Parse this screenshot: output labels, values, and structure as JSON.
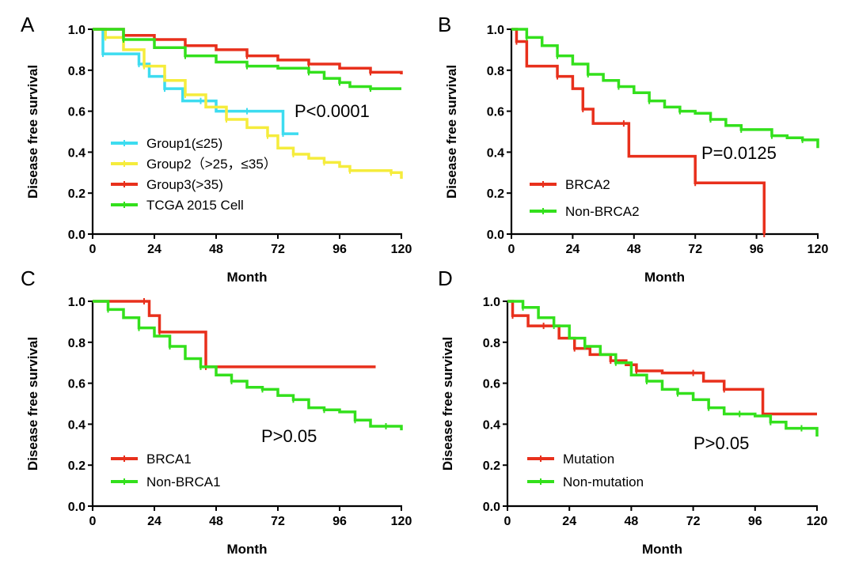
{
  "chart_data": [
    {
      "type": "line",
      "panel": "A",
      "xlabel": "Month",
      "ylabel": "Disease free survival",
      "xlim": [
        0,
        120
      ],
      "ylim": [
        0,
        1.0
      ],
      "x_ticks": [
        "0",
        "24",
        "48",
        "72",
        "96",
        "120"
      ],
      "y_ticks": [
        "0.0",
        "0.2",
        "0.4",
        "0.6",
        "0.8",
        "1.0"
      ],
      "annotation": "P<0.0001",
      "grid": false,
      "legend_position": "bottom-left",
      "series": [
        {
          "name": "Group1(≤25)",
          "color": "#3ddcf0",
          "x": [
            0,
            4,
            8,
            18,
            22,
            28,
            35,
            42,
            48,
            60,
            72,
            74,
            80
          ],
          "y": [
            1.0,
            0.88,
            0.88,
            0.83,
            0.77,
            0.71,
            0.65,
            0.65,
            0.6,
            0.6,
            0.6,
            0.49,
            0.49
          ]
        },
        {
          "name": "Group2（>25，≤35）",
          "color": "#f5ec3c",
          "x": [
            0,
            5,
            12,
            20,
            28,
            36,
            44,
            52,
            60,
            68,
            72,
            78,
            84,
            90,
            96,
            100,
            108,
            116,
            120
          ],
          "y": [
            1.0,
            0.96,
            0.9,
            0.82,
            0.75,
            0.68,
            0.62,
            0.56,
            0.52,
            0.48,
            0.42,
            0.39,
            0.37,
            0.35,
            0.33,
            0.31,
            0.31,
            0.3,
            0.27
          ]
        },
        {
          "name": "Group3(>35)",
          "color": "#e8301c",
          "x": [
            0,
            12,
            24,
            36,
            48,
            60,
            72,
            84,
            96,
            108,
            120
          ],
          "y": [
            1.0,
            0.97,
            0.95,
            0.92,
            0.9,
            0.87,
            0.85,
            0.83,
            0.81,
            0.79,
            0.78
          ]
        },
        {
          "name": "TCGA 2015 Cell",
          "color": "#33e01c",
          "x": [
            0,
            12,
            24,
            36,
            48,
            60,
            72,
            84,
            90,
            96,
            100,
            108,
            120
          ],
          "y": [
            1.0,
            0.95,
            0.91,
            0.87,
            0.84,
            0.82,
            0.81,
            0.79,
            0.76,
            0.74,
            0.72,
            0.71,
            0.71
          ]
        }
      ]
    },
    {
      "type": "line",
      "panel": "B",
      "xlabel": "Month",
      "ylabel": "Disease free survival",
      "xlim": [
        0,
        120
      ],
      "ylim": [
        0,
        1.0
      ],
      "x_ticks": [
        "0",
        "24",
        "48",
        "72",
        "96",
        "120"
      ],
      "y_ticks": [
        "0.0",
        "0.2",
        "0.4",
        "0.6",
        "0.8",
        "1.0"
      ],
      "annotation": "P=0.0125",
      "grid": false,
      "legend_position": "bottom-left",
      "series": [
        {
          "name": "BRCA2",
          "color": "#e8301c",
          "x": [
            0,
            2,
            6,
            18,
            24,
            28,
            32,
            44,
            46,
            72,
            97,
            99
          ],
          "y": [
            1.0,
            0.94,
            0.82,
            0.77,
            0.71,
            0.61,
            0.54,
            0.54,
            0.38,
            0.25,
            0.25,
            0.0
          ]
        },
        {
          "name": "Non-BRCA2",
          "color": "#33e01c",
          "x": [
            0,
            6,
            12,
            18,
            24,
            30,
            36,
            42,
            48,
            54,
            60,
            66,
            72,
            78,
            84,
            90,
            96,
            102,
            108,
            114,
            120
          ],
          "y": [
            1.0,
            0.96,
            0.92,
            0.87,
            0.83,
            0.78,
            0.75,
            0.72,
            0.69,
            0.65,
            0.62,
            0.6,
            0.59,
            0.56,
            0.53,
            0.51,
            0.51,
            0.48,
            0.47,
            0.46,
            0.42
          ]
        }
      ]
    },
    {
      "type": "line",
      "panel": "C",
      "xlabel": "Month",
      "ylabel": "Disease free survival",
      "xlim": [
        0,
        120
      ],
      "ylim": [
        0,
        1.0
      ],
      "x_ticks": [
        "0",
        "24",
        "48",
        "72",
        "96",
        "120"
      ],
      "y_ticks": [
        "0.0",
        "0.2",
        "0.4",
        "0.6",
        "0.8",
        "1.0"
      ],
      "annotation": "P>0.05",
      "grid": false,
      "legend_position": "bottom-left",
      "series": [
        {
          "name": "BRCA1",
          "color": "#e8301c",
          "x": [
            0,
            20,
            22,
            26,
            42,
            44,
            110
          ],
          "y": [
            1.0,
            1.0,
            0.93,
            0.85,
            0.85,
            0.68,
            0.68
          ]
        },
        {
          "name": "Non-BRCA1",
          "color": "#33e01c",
          "x": [
            0,
            6,
            12,
            18,
            24,
            30,
            36,
            42,
            48,
            54,
            60,
            66,
            72,
            78,
            84,
            90,
            96,
            102,
            108,
            114,
            120
          ],
          "y": [
            1.0,
            0.96,
            0.92,
            0.87,
            0.83,
            0.78,
            0.72,
            0.68,
            0.64,
            0.61,
            0.58,
            0.57,
            0.54,
            0.52,
            0.48,
            0.47,
            0.46,
            0.42,
            0.39,
            0.39,
            0.37
          ]
        }
      ]
    },
    {
      "type": "line",
      "panel": "D",
      "xlabel": "Month",
      "ylabel": "Disease free survival",
      "xlim": [
        0,
        120
      ],
      "ylim": [
        0,
        1.0
      ],
      "x_ticks": [
        "0",
        "24",
        "48",
        "72",
        "96",
        "120"
      ],
      "y_ticks": [
        "0.0",
        "0.2",
        "0.4",
        "0.6",
        "0.8",
        "1.0"
      ],
      "annotation": "P>0.05",
      "grid": false,
      "legend_position": "bottom-left",
      "series": [
        {
          "name": "Mutation",
          "color": "#e8301c",
          "x": [
            0,
            2,
            8,
            14,
            20,
            26,
            32,
            40,
            46,
            50,
            60,
            72,
            76,
            84,
            96,
            99,
            120
          ],
          "y": [
            1.0,
            0.93,
            0.88,
            0.88,
            0.82,
            0.77,
            0.74,
            0.71,
            0.69,
            0.66,
            0.65,
            0.65,
            0.61,
            0.57,
            0.57,
            0.45,
            0.45
          ]
        },
        {
          "name": "Non-mutation",
          "color": "#33e01c",
          "x": [
            0,
            6,
            12,
            18,
            24,
            30,
            36,
            42,
            48,
            54,
            60,
            66,
            72,
            78,
            84,
            90,
            96,
            102,
            108,
            114,
            120
          ],
          "y": [
            1.0,
            0.97,
            0.92,
            0.88,
            0.82,
            0.78,
            0.74,
            0.7,
            0.64,
            0.61,
            0.57,
            0.55,
            0.52,
            0.48,
            0.45,
            0.45,
            0.44,
            0.41,
            0.38,
            0.38,
            0.34
          ]
        }
      ]
    }
  ]
}
